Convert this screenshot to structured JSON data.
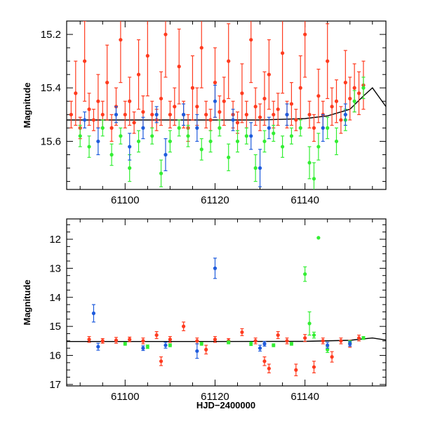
{
  "chart_data": [
    {
      "type": "scatter",
      "panel": "top",
      "title": "",
      "xlabel": "",
      "ylabel": "Magnitude",
      "xlim": [
        61087,
        61158
      ],
      "ylim": [
        15.78,
        15.15
      ],
      "y_inverted": true,
      "x_ticks": [
        61100,
        61120,
        61140
      ],
      "x_tick_labels": [
        "61100",
        "61120",
        "61140"
      ],
      "y_ticks": [
        15.2,
        15.4,
        15.6
      ],
      "y_tick_labels": [
        "15.2",
        "15.4",
        "15.6"
      ],
      "model_curve": {
        "name": "model",
        "color": "#000000",
        "x": [
          61087,
          61100,
          61110,
          61120,
          61130,
          61140,
          61145,
          61150,
          61153,
          61155,
          61158
        ],
        "y": [
          15.52,
          15.52,
          15.52,
          15.52,
          15.52,
          15.515,
          15.505,
          15.48,
          15.43,
          15.4,
          15.47
        ]
      },
      "series": [
        {
          "name": "red",
          "color": "#ff3b1f",
          "x": [
            61088,
            61089,
            61090,
            61091,
            61092,
            61093,
            61094,
            61095,
            61096,
            61097,
            61098,
            61099,
            61100,
            61101,
            61102,
            61103,
            61104,
            61105,
            61106,
            61107,
            61108,
            61109,
            61110,
            61111,
            61112,
            61113,
            61114,
            61115,
            61116,
            61117,
            61118,
            61119,
            61120,
            61121,
            61122,
            61123,
            61124,
            61125,
            61126,
            61127,
            61128,
            61129,
            61130,
            61131,
            61132,
            61133,
            61134,
            61135,
            61136,
            61137,
            61138,
            61139,
            61140,
            61141,
            61142,
            61143,
            61144,
            61145,
            61146,
            61147,
            61148,
            61149,
            61150,
            61151,
            61152,
            61153
          ],
          "y": [
            15.5,
            15.42,
            15.55,
            15.3,
            15.48,
            15.52,
            15.45,
            15.5,
            15.38,
            15.55,
            15.47,
            15.22,
            15.5,
            15.45,
            15.53,
            15.35,
            15.49,
            15.28,
            15.5,
            15.52,
            15.44,
            15.2,
            15.5,
            15.47,
            15.32,
            15.5,
            15.55,
            15.4,
            15.47,
            15.25,
            15.5,
            15.52,
            15.38,
            15.49,
            15.45,
            15.3,
            15.5,
            15.53,
            15.42,
            15.5,
            15.22,
            15.47,
            15.51,
            15.44,
            15.35,
            15.5,
            15.48,
            15.27,
            15.5,
            15.46,
            15.52,
            15.4,
            15.2,
            15.5,
            15.55,
            15.43,
            15.5,
            15.3,
            15.47,
            15.45,
            15.52,
            15.38,
            15.44,
            15.4,
            15.42,
            15.39
          ],
          "err": [
            0.05,
            0.12,
            0.04,
            0.15,
            0.06,
            0.04,
            0.1,
            0.05,
            0.14,
            0.05,
            0.07,
            0.16,
            0.05,
            0.09,
            0.04,
            0.13,
            0.06,
            0.15,
            0.05,
            0.04,
            0.1,
            0.16,
            0.05,
            0.07,
            0.14,
            0.05,
            0.05,
            0.12,
            0.07,
            0.15,
            0.05,
            0.04,
            0.13,
            0.06,
            0.09,
            0.14,
            0.05,
            0.04,
            0.11,
            0.05,
            0.16,
            0.07,
            0.05,
            0.1,
            0.13,
            0.05,
            0.06,
            0.15,
            0.05,
            0.08,
            0.04,
            0.12,
            0.16,
            0.05,
            0.05,
            0.1,
            0.05,
            0.14,
            0.07,
            0.08,
            0.05,
            0.12,
            0.08,
            0.09,
            0.08,
            0.09
          ]
        },
        {
          "name": "green",
          "color": "#33ee33",
          "x": [
            61090,
            61092,
            61095,
            61097,
            61099,
            61101,
            61103,
            61106,
            61108,
            61110,
            61112,
            61114,
            61117,
            61119,
            61121,
            61123,
            61125,
            61127,
            61129,
            61131,
            61133,
            61135,
            61137,
            61139,
            61141,
            61142,
            61143,
            61145,
            61147,
            61149,
            61151,
            61153
          ],
          "y": [
            15.58,
            15.62,
            15.55,
            15.65,
            15.58,
            15.7,
            15.6,
            15.58,
            15.72,
            15.6,
            15.55,
            15.58,
            15.63,
            15.6,
            15.55,
            15.66,
            15.6,
            15.58,
            15.7,
            15.6,
            15.57,
            15.62,
            15.58,
            15.55,
            15.68,
            15.74,
            15.62,
            15.55,
            15.6,
            15.52,
            15.45,
            15.4
          ],
          "err": [
            0.04,
            0.04,
            0.03,
            0.04,
            0.03,
            0.05,
            0.04,
            0.03,
            0.05,
            0.04,
            0.03,
            0.04,
            0.04,
            0.04,
            0.03,
            0.05,
            0.04,
            0.03,
            0.05,
            0.04,
            0.03,
            0.04,
            0.03,
            0.03,
            0.06,
            0.06,
            0.05,
            0.04,
            0.05,
            0.04,
            0.04,
            0.04
          ]
        },
        {
          "name": "blue",
          "color": "#1f5cdd",
          "x": [
            61091,
            61094,
            61098,
            61101,
            61104,
            61107,
            61109,
            61113,
            61116,
            61120,
            61124,
            61128,
            61130,
            61132,
            61136,
            61144,
            61149
          ],
          "y": [
            15.52,
            15.6,
            15.5,
            15.62,
            15.55,
            15.5,
            15.65,
            15.5,
            15.55,
            15.45,
            15.52,
            15.58,
            15.7,
            15.55,
            15.5,
            15.55,
            15.5
          ],
          "err": [
            0.03,
            0.05,
            0.03,
            0.05,
            0.04,
            0.03,
            0.06,
            0.04,
            0.05,
            0.06,
            0.04,
            0.05,
            0.07,
            0.04,
            0.04,
            0.05,
            0.04
          ]
        }
      ]
    },
    {
      "type": "scatter",
      "panel": "bottom",
      "title": "",
      "xlabel": "HJD−2400000",
      "ylabel": "Magnitude",
      "xlim": [
        61087,
        61158
      ],
      "ylim": [
        17.05,
        11.3
      ],
      "y_inverted": true,
      "x_ticks": [
        61100,
        61120,
        61140
      ],
      "x_tick_labels": [
        "61100",
        "61120",
        "61140"
      ],
      "y_ticks": [
        12,
        13,
        14,
        15,
        16,
        17
      ],
      "y_tick_labels": [
        "12",
        "13",
        "14",
        "15",
        "16",
        "17"
      ],
      "model_curve": {
        "name": "model",
        "color": "#000000",
        "x": [
          61087,
          61120,
          61140,
          61150,
          61153,
          61155,
          61158
        ],
        "y": [
          15.52,
          15.52,
          15.515,
          15.48,
          15.43,
          15.4,
          15.47
        ]
      },
      "series": [
        {
          "name": "red",
          "color": "#ff3b1f",
          "x": [
            61092,
            61095,
            61098,
            61101,
            61104,
            61107,
            61108,
            61110,
            61113,
            61116,
            61118,
            61120,
            61123,
            61126,
            61129,
            61131,
            61132,
            61134,
            61136,
            61138,
            61140,
            61142,
            61144,
            61146,
            61148,
            61150,
            61152
          ],
          "y": [
            15.45,
            15.5,
            15.48,
            15.45,
            15.5,
            15.3,
            16.2,
            15.45,
            15.0,
            15.5,
            15.8,
            15.45,
            15.5,
            15.2,
            15.5,
            16.2,
            16.45,
            15.3,
            15.5,
            16.5,
            15.4,
            16.4,
            15.5,
            16.05,
            15.5,
            15.6,
            15.4
          ],
          "err": [
            0.1,
            0.08,
            0.1,
            0.08,
            0.1,
            0.12,
            0.15,
            0.1,
            0.15,
            0.1,
            0.15,
            0.1,
            0.08,
            0.12,
            0.1,
            0.15,
            0.15,
            0.12,
            0.1,
            0.2,
            0.12,
            0.2,
            0.1,
            0.18,
            0.1,
            0.12,
            0.1
          ]
        },
        {
          "name": "green",
          "color": "#33ee33",
          "x": [
            61100,
            61105,
            61110,
            61117,
            61123,
            61128,
            61133,
            61137,
            61140,
            61141,
            61142,
            61143,
            61145,
            61150,
            61153
          ],
          "y": [
            15.6,
            15.7,
            15.65,
            15.6,
            15.55,
            15.6,
            15.65,
            15.6,
            13.2,
            14.9,
            15.3,
            11.95,
            15.8,
            15.55,
            15.4
          ],
          "err": [
            0.05,
            0.06,
            0.05,
            0.05,
            0.05,
            0.06,
            0.05,
            0.05,
            0.25,
            0.4,
            0.1,
            0.0,
            0.1,
            0.06,
            0.05
          ]
        },
        {
          "name": "blue",
          "color": "#1f5cdd",
          "x": [
            61093,
            61094,
            61104,
            61109,
            61116,
            61120,
            61130,
            61131,
            61145,
            61150
          ],
          "y": [
            14.55,
            15.7,
            15.75,
            15.65,
            15.85,
            13.0,
            15.75,
            15.6,
            15.65,
            15.6
          ],
          "err": [
            0.3,
            0.12,
            0.08,
            0.1,
            0.25,
            0.35,
            0.1,
            0.08,
            0.1,
            0.08
          ]
        }
      ]
    }
  ]
}
